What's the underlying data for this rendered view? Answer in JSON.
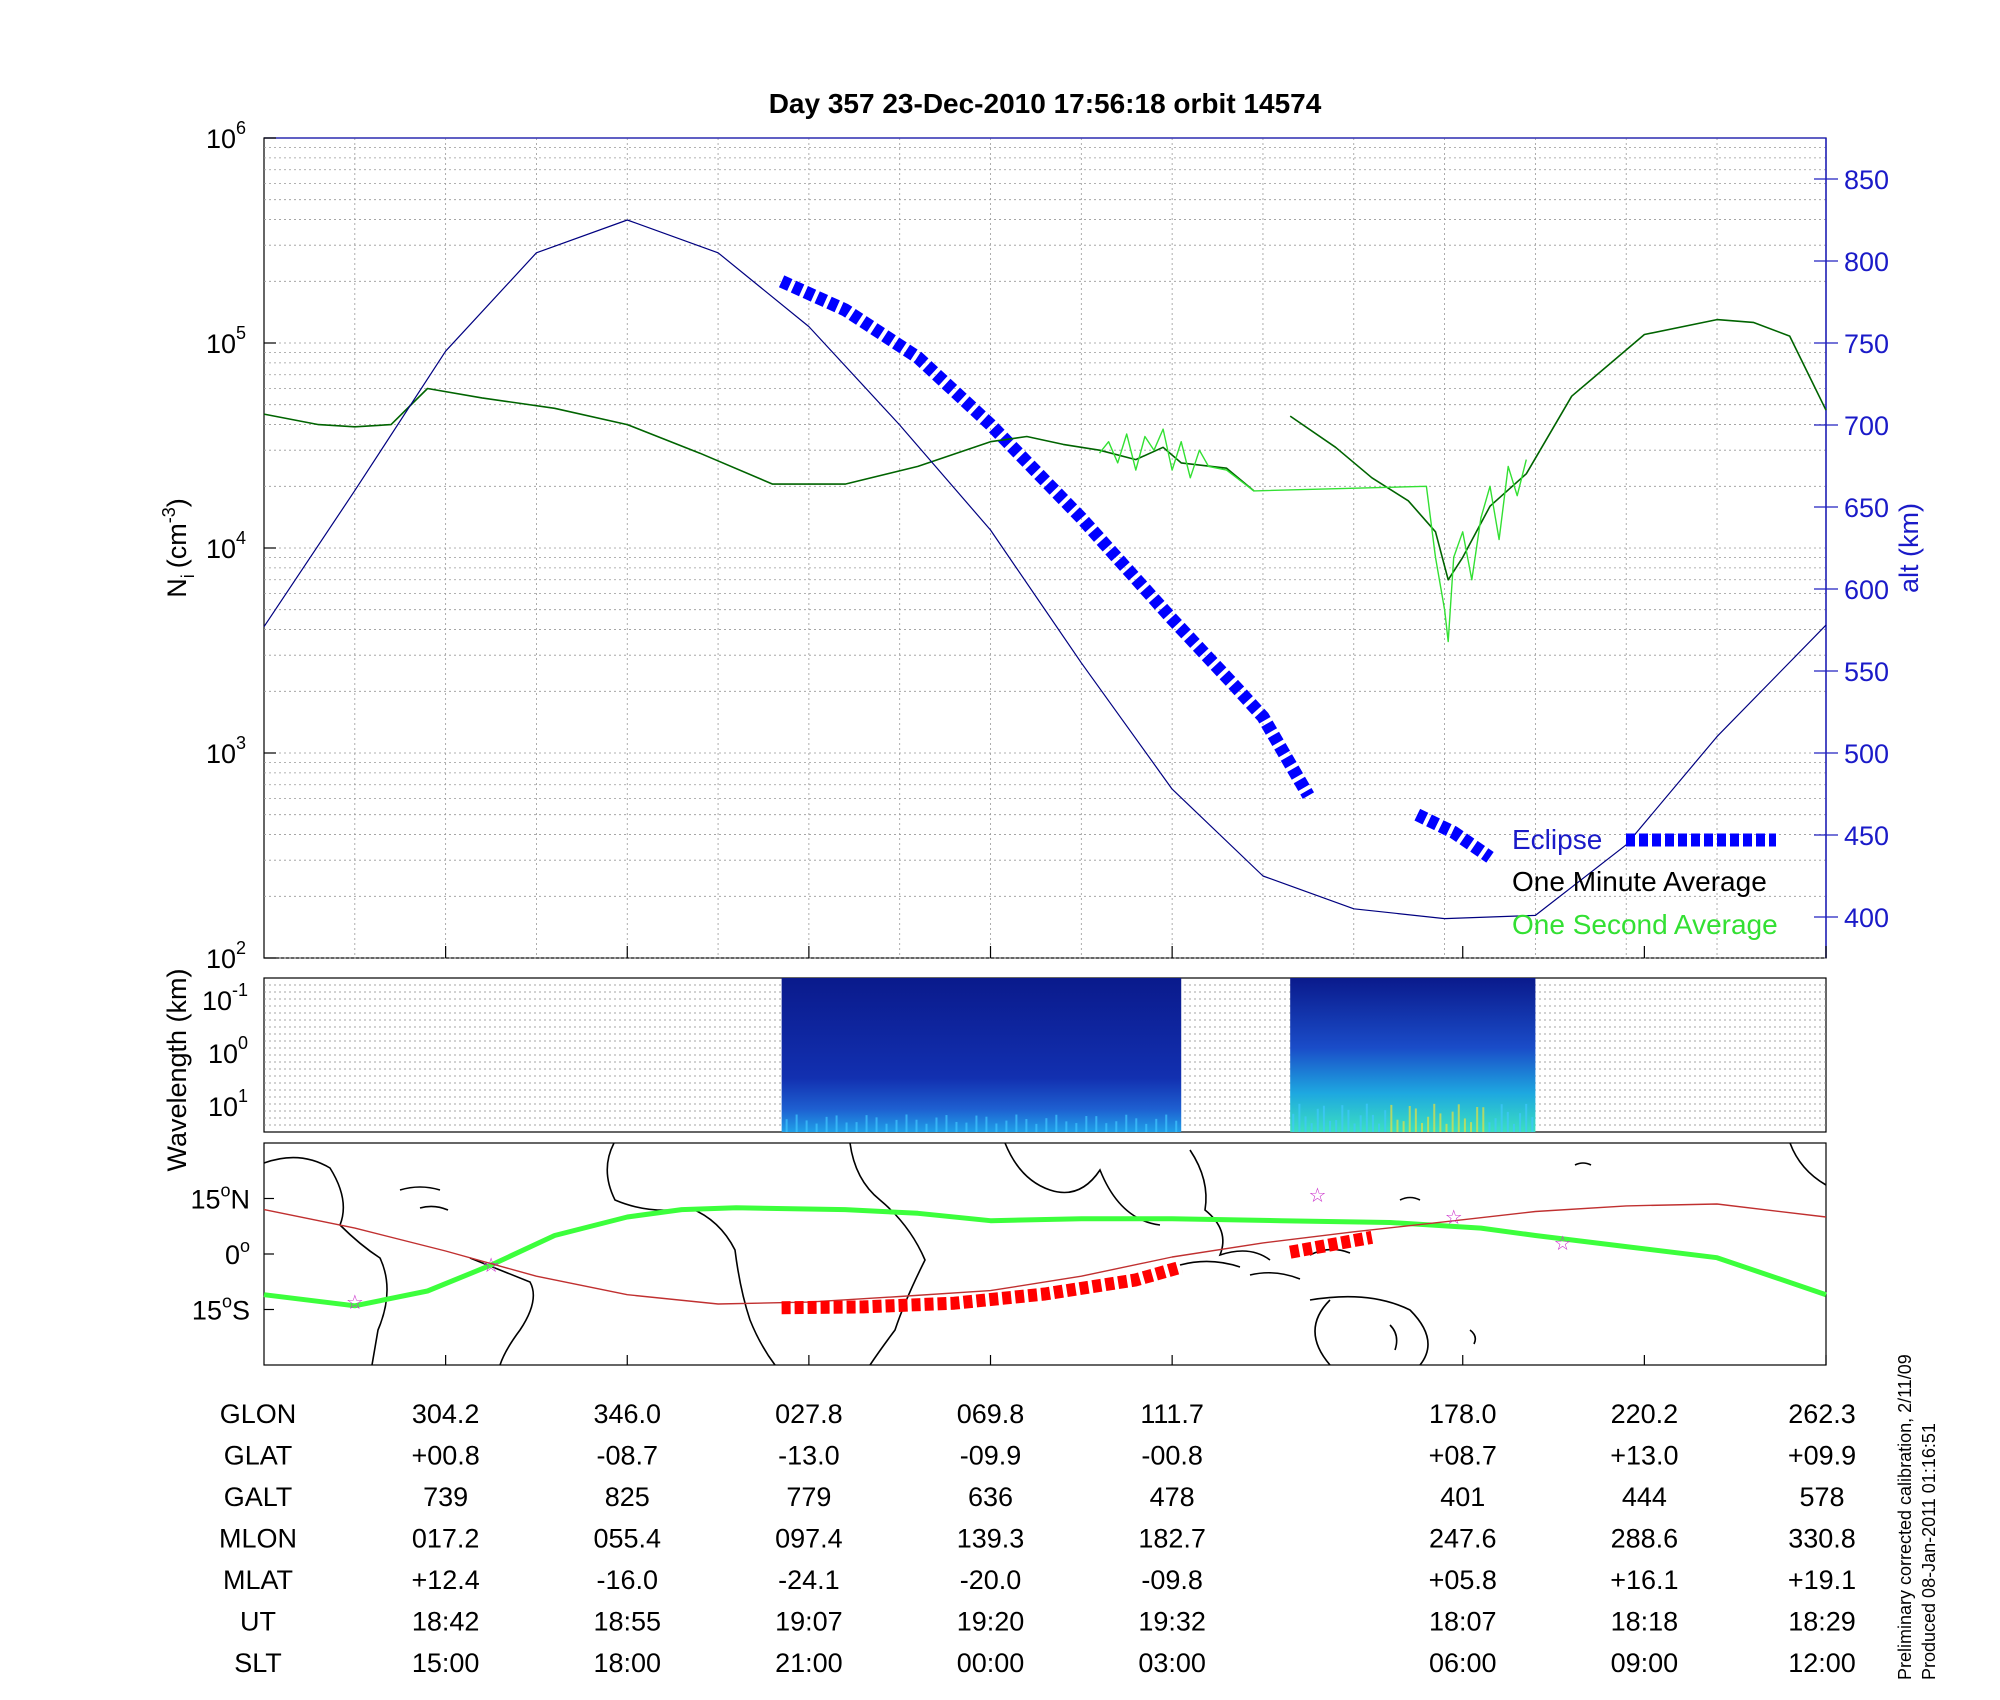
{
  "chart_data": [
    {
      "type": "line",
      "title": "Day 357  23-Dec-2010 17:56:18   orbit 14574",
      "ylabel": "N",
      "ylabel_sub": "i",
      "ylabel_unit": "(cm",
      "ylabel_unit_exp": "-3",
      "ylabel_unit_close": ")",
      "ylim": [
        100,
        1000000
      ],
      "yscale": "log",
      "y_ticks": [
        {
          "base": "10",
          "exp": "2"
        },
        {
          "base": "10",
          "exp": "3"
        },
        {
          "base": "10",
          "exp": "4"
        },
        {
          "base": "10",
          "exp": "5"
        },
        {
          "base": "10",
          "exp": "6"
        }
      ],
      "y2label": "alt (km)",
      "y2lim": [
        375,
        875
      ],
      "y2_ticks": [
        "400",
        "450",
        "500",
        "550",
        "600",
        "650",
        "700",
        "750",
        "800",
        "850"
      ],
      "x_index_range": [
        0,
        8.6
      ],
      "grid": true,
      "legend_position": "bottom-right",
      "series": [
        {
          "name": "Eclipse",
          "color": "#0000ff",
          "style": "thick-dashed",
          "points": [
            [
              2.85,
              200000
            ],
            [
              3.2,
              145000
            ],
            [
              3.6,
              85000
            ],
            [
              4.0,
              40000
            ],
            [
              4.5,
              14000
            ],
            [
              5.0,
              4500
            ],
            [
              5.35,
              2100
            ],
            [
              5.5,
              1500
            ],
            [
              5.75,
              620
            ]
          ]
        },
        {
          "name": "Eclipse",
          "color": "#0000ff",
          "style": "thick-dashed",
          "points": [
            [
              6.35,
              500
            ],
            [
              6.55,
              410
            ],
            [
              6.75,
              310
            ]
          ]
        },
        {
          "name": "One Minute Average",
          "color": "#006400",
          "points": [
            [
              0,
              45000
            ],
            [
              0.3,
              40000
            ],
            [
              0.5,
              39000
            ],
            [
              0.7,
              40000
            ],
            [
              0.9,
              60000
            ],
            [
              1.2,
              54000
            ],
            [
              1.6,
              48000
            ],
            [
              2.0,
              40000
            ],
            [
              2.4,
              29000
            ],
            [
              2.8,
              20500
            ],
            [
              3.2,
              20500
            ],
            [
              3.6,
              25000
            ],
            [
              4.0,
              33000
            ],
            [
              4.2,
              35000
            ],
            [
              4.4,
              32000
            ],
            [
              4.6,
              30000
            ],
            [
              4.8,
              27000
            ],
            [
              4.95,
              31000
            ],
            [
              5.05,
              26000
            ],
            [
              5.3,
              24500
            ],
            [
              5.45,
              19000
            ]
          ]
        },
        {
          "name": "One Minute Average",
          "color": "#006400",
          "points": [
            [
              5.65,
              44000
            ],
            [
              5.9,
              31000
            ],
            [
              6.1,
              22000
            ],
            [
              6.3,
              17000
            ],
            [
              6.45,
              12000
            ],
            [
              6.52,
              7000
            ],
            [
              6.6,
              9000
            ],
            [
              6.75,
              16000
            ],
            [
              6.95,
              23000
            ],
            [
              7.2,
              55000
            ],
            [
              7.6,
              110000
            ],
            [
              8.0,
              130000
            ],
            [
              8.2,
              126000
            ],
            [
              8.4,
              108000
            ],
            [
              8.6,
              47000
            ]
          ]
        },
        {
          "name": "One Second Average",
          "color": "#33e033",
          "points": [
            [
              4.6,
              29000
            ],
            [
              4.65,
              33000
            ],
            [
              4.7,
              26000
            ],
            [
              4.75,
              36000
            ],
            [
              4.8,
              24000
            ],
            [
              4.85,
              35000
            ],
            [
              4.9,
              30000
            ],
            [
              4.95,
              38000
            ],
            [
              5.0,
              24000
            ],
            [
              5.05,
              33000
            ],
            [
              5.1,
              22000
            ],
            [
              5.15,
              30000
            ],
            [
              5.2,
              25000
            ],
            [
              5.3,
              24000
            ],
            [
              5.45,
              19000
            ],
            [
              6.4,
              20000
            ],
            [
              6.45,
              9000
            ],
            [
              6.5,
              5000
            ],
            [
              6.52,
              3500
            ],
            [
              6.55,
              9000
            ],
            [
              6.6,
              12000
            ],
            [
              6.65,
              7000
            ],
            [
              6.7,
              14000
            ],
            [
              6.75,
              20000
            ],
            [
              6.8,
              11000
            ],
            [
              6.85,
              25000
            ],
            [
              6.9,
              18000
            ],
            [
              6.95,
              27000
            ]
          ]
        },
        {
          "name": "",
          "axis": "y2",
          "color": "#000080",
          "points": [
            [
              0,
              577
            ],
            [
              0.5,
              660
            ],
            [
              1.0,
              745
            ],
            [
              1.5,
              805
            ],
            [
              2.0,
              825
            ],
            [
              2.5,
              805
            ],
            [
              3.0,
              760
            ],
            [
              3.5,
              700
            ],
            [
              4.0,
              636
            ],
            [
              4.5,
              555
            ],
            [
              5.0,
              478
            ],
            [
              5.5,
              425
            ],
            [
              6.0,
              405
            ],
            [
              6.5,
              399
            ],
            [
              7.0,
              401
            ],
            [
              7.5,
              444
            ],
            [
              8.0,
              510
            ],
            [
              8.6,
              578
            ]
          ]
        }
      ],
      "legend": [
        {
          "label": "Eclipse",
          "color": "#1a1ac8"
        },
        {
          "label": "One Minute Average",
          "color": "#000000"
        },
        {
          "label": "One Second Average",
          "color": "#33e033"
        }
      ]
    },
    {
      "type": "heatmap",
      "ylabel": "Wavelength (km)",
      "y_ticks": [
        {
          "base": "10",
          "exp": "-1"
        },
        {
          "base": "10",
          "exp": "0"
        },
        {
          "base": "10",
          "exp": "1"
        }
      ],
      "blocks": [
        {
          "x_start": 2.85,
          "x_end": 5.05,
          "intensity": 0.35
        },
        {
          "x_start": 5.65,
          "x_end": 7.0,
          "intensity": 0.75
        }
      ]
    },
    {
      "type": "line",
      "kind": "ground-track map",
      "y_ticks": [
        {
          "value": "15",
          "deg": "o",
          "hemi": "N",
          "lat": 15
        },
        {
          "value": "0",
          "deg": "o",
          "hemi": "",
          "lat": 0
        },
        {
          "value": "15",
          "deg": "o",
          "hemi": "S",
          "lat": -15
        }
      ],
      "ylim": [
        -30,
        30
      ],
      "series": [
        {
          "name": "magnetic equator",
          "color": "#3cff3c",
          "points": [
            [
              0,
              -11
            ],
            [
              0.5,
              -14
            ],
            [
              0.9,
              -10
            ],
            [
              1.25,
              -3
            ],
            [
              1.6,
              5
            ],
            [
              2.0,
              10
            ],
            [
              2.3,
              12
            ],
            [
              2.6,
              12.5
            ],
            [
              3.2,
              12
            ],
            [
              3.6,
              11
            ],
            [
              4.0,
              9
            ],
            [
              4.5,
              9.5
            ],
            [
              5.0,
              9.5
            ],
            [
              5.6,
              9
            ],
            [
              6.2,
              8.5
            ],
            [
              6.7,
              7
            ],
            [
              7.0,
              5
            ],
            [
              7.5,
              2
            ],
            [
              8.0,
              -1
            ],
            [
              8.6,
              -11
            ]
          ]
        },
        {
          "name": "track",
          "color": "#c03030",
          "points": [
            [
              0,
              12
            ],
            [
              0.5,
              7
            ],
            [
              1.0,
              0.8
            ],
            [
              1.5,
              -6
            ],
            [
              2.0,
              -11
            ],
            [
              2.5,
              -13.5
            ],
            [
              3.0,
              -13
            ],
            [
              3.5,
              -11.5
            ],
            [
              4.0,
              -9.9
            ],
            [
              4.5,
              -6
            ],
            [
              5.0,
              -0.8
            ],
            [
              5.5,
              3
            ],
            [
              6.0,
              6
            ],
            [
              6.5,
              8.7
            ],
            [
              7.0,
              11.5
            ],
            [
              7.5,
              13
            ],
            [
              8.0,
              13.5
            ],
            [
              8.6,
              10
            ]
          ]
        },
        {
          "name": "eclipse track",
          "color": "#ff0000",
          "style": "thick-dashed",
          "points": [
            [
              2.85,
              -14.5
            ],
            [
              3.3,
              -14.3
            ],
            [
              3.8,
              -13.3
            ],
            [
              4.3,
              -10.8
            ],
            [
              4.8,
              -7.0
            ],
            [
              5.05,
              -3.5
            ]
          ]
        },
        {
          "name": "eclipse track",
          "color": "#ff0000",
          "style": "thick-dashed",
          "points": [
            [
              5.65,
              0.5
            ],
            [
              6.1,
              4.5
            ]
          ]
        }
      ],
      "stars": [
        [
          1.25,
          -3
        ],
        [
          0.5,
          -13
        ],
        [
          5.8,
          16
        ],
        [
          6.55,
          10
        ],
        [
          7.15,
          3
        ]
      ]
    }
  ],
  "table": {
    "rows": [
      {
        "label": "GLON",
        "values": [
          "304.2",
          "346.0",
          "027.8",
          "069.8",
          "111.7",
          "178.0",
          "220.2",
          "262.3"
        ]
      },
      {
        "label": "GLAT",
        "values": [
          "+00.8",
          "-08.7",
          "-13.0",
          "-09.9",
          "-00.8",
          "+08.7",
          "+13.0",
          "+09.9"
        ]
      },
      {
        "label": "GALT",
        "values": [
          "739",
          "825",
          "779",
          "636",
          "478",
          "401",
          "444",
          "578"
        ]
      },
      {
        "label": "MLON",
        "values": [
          "017.2",
          "055.4",
          "097.4",
          "139.3",
          "182.7",
          "247.6",
          "288.6",
          "330.8"
        ]
      },
      {
        "label": "MLAT",
        "values": [
          "+12.4",
          "-16.0",
          "-24.1",
          "-20.0",
          "-09.8",
          "+05.8",
          "+16.1",
          "+19.1"
        ]
      },
      {
        "label": "UT",
        "values": [
          "18:42",
          "18:55",
          "19:07",
          "19:20",
          "19:32",
          "18:07",
          "18:18",
          "18:29"
        ]
      },
      {
        "label": "SLT",
        "values": [
          "15:00",
          "18:00",
          "21:00",
          "00:00",
          "03:00",
          "06:00",
          "09:00",
          "12:00"
        ]
      }
    ],
    "column_index": [
      1,
      2,
      3,
      4,
      5,
      6.6,
      7.6,
      8.6
    ]
  },
  "notes": [
    "Preliminary corrected calibration, 2/11/09",
    "Produced 08-Jan-2011 01:16:51"
  ]
}
